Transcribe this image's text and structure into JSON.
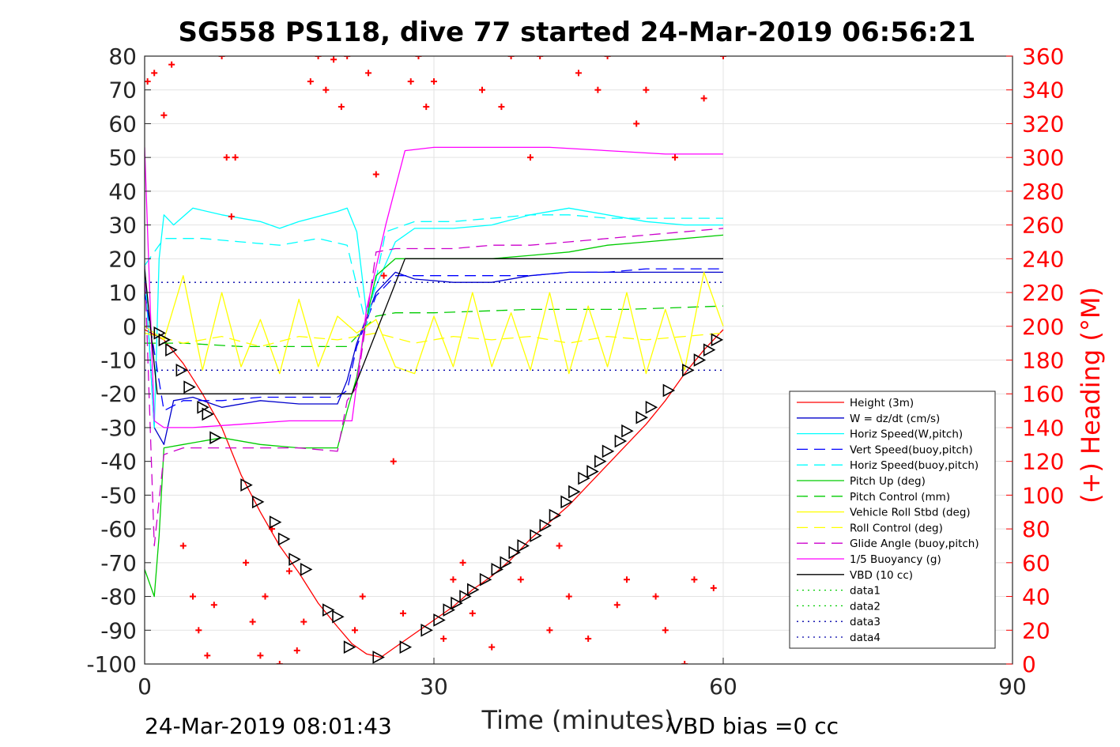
{
  "chart_data": {
    "type": "line",
    "title": "SG558 PS118, dive 77 started 24-Mar-2019 06:56:21",
    "xlabel": "Time (minutes)",
    "ylabel": "",
    "y2label": "(+) Heading (°M)",
    "xlim": [
      0,
      90
    ],
    "ylim": [
      -100,
      80
    ],
    "y2lim": [
      0,
      360
    ],
    "xticks": [
      "0",
      "30",
      "60",
      "90"
    ],
    "yticks": [
      "80",
      "70",
      "60",
      "50",
      "40",
      "30",
      "20",
      "10",
      "0",
      "-10",
      "-20",
      "-30",
      "-40",
      "-50",
      "-60",
      "-70",
      "-80",
      "-90",
      "-100"
    ],
    "y2ticks": [
      "360",
      "340",
      "320",
      "300",
      "280",
      "260",
      "240",
      "220",
      "200",
      "180",
      "160",
      "140",
      "120",
      "100",
      "80",
      "60",
      "40",
      "20",
      "0"
    ],
    "grid": true,
    "legend_position": "lower-right",
    "footer_left": "24-Mar-2019 08:01:43",
    "footer_right": "VBD bias =0 cc",
    "series": [
      {
        "name": "Height (3m)",
        "color": "#ff0000",
        "style": "solid",
        "x": [
          0,
          2,
          4,
          6,
          8,
          10,
          12,
          14,
          16,
          18,
          20,
          21.5,
          23,
          24.5,
          26,
          28,
          30,
          32,
          34,
          36,
          38,
          40,
          42,
          44,
          46,
          48,
          50,
          52,
          54,
          56,
          58,
          60
        ],
        "y": [
          -1,
          -4,
          -11,
          -20,
          -30,
          -44,
          -55,
          -65,
          -73,
          -82,
          -89,
          -94,
          -97,
          -98,
          -95,
          -91,
          -87,
          -83,
          -78,
          -74,
          -69,
          -63,
          -58,
          -53,
          -47,
          -41,
          -35,
          -29,
          -22,
          -14,
          -7,
          -1
        ]
      },
      {
        "name": "W = dz/dt (cm/s)",
        "color": "#0000cc",
        "style": "solid",
        "x": [
          0,
          1,
          2,
          3,
          5,
          8,
          12,
          16,
          20,
          21,
          22,
          24,
          26,
          28,
          32,
          36,
          40,
          44,
          48,
          52,
          56,
          60
        ],
        "y": [
          18,
          -30,
          -35,
          -22,
          -21,
          -24,
          -22,
          -23,
          -23,
          -16,
          -5,
          10,
          16,
          14,
          13,
          13,
          15,
          16,
          16,
          16,
          16,
          16
        ]
      },
      {
        "name": "Horiz Speed(W,pitch)",
        "color": "#00ffff",
        "style": "solid",
        "x": [
          0,
          1,
          1.5,
          2,
          3,
          5,
          8,
          12,
          14,
          16,
          20,
          21,
          22,
          23,
          24,
          26,
          28,
          32,
          36,
          40,
          44,
          48,
          52,
          56,
          60
        ],
        "y": [
          18,
          -30,
          20,
          33,
          30,
          35,
          33,
          31,
          29,
          31,
          34,
          35,
          28,
          4,
          12,
          25,
          29,
          29,
          30,
          33,
          35,
          33,
          31,
          30,
          30
        ]
      },
      {
        "name": "Vert Speed(buoy,pitch)",
        "color": "#0000ff",
        "style": "dash",
        "x": [
          0,
          2,
          4,
          8,
          12,
          16,
          20,
          21,
          22,
          24,
          26,
          28,
          32,
          36,
          40,
          44,
          48,
          52,
          56,
          60
        ],
        "y": [
          10,
          -25,
          -22,
          -22,
          -21,
          -21,
          -21,
          -19,
          -6,
          9,
          15,
          15,
          15,
          15,
          15,
          16,
          16,
          17,
          17,
          17
        ]
      },
      {
        "name": "Horiz Speed(buoy,pitch)",
        "color": "#00ffff",
        "style": "dash",
        "x": [
          0,
          2,
          3,
          6,
          10,
          14,
          18,
          21,
          23,
          25,
          28,
          32,
          36,
          40,
          44,
          48,
          52,
          56,
          60
        ],
        "y": [
          18,
          26,
          26,
          26,
          25,
          24,
          26,
          24,
          0,
          28,
          31,
          31,
          32,
          33,
          33,
          32,
          32,
          32,
          32
        ]
      },
      {
        "name": "Pitch Up (deg)",
        "color": "#00cc00",
        "style": "solid",
        "x": [
          0,
          1,
          1.5,
          2,
          4,
          8,
          12,
          16,
          20,
          21,
          22,
          23,
          24,
          26,
          28,
          32,
          36,
          40,
          44,
          48,
          52,
          56,
          60
        ],
        "y": [
          -72,
          -80,
          -62,
          -36,
          -35,
          -33,
          -35,
          -36,
          -36,
          -25,
          -15,
          2,
          15,
          20,
          20,
          20,
          20,
          21,
          22,
          24,
          25,
          26,
          27
        ]
      },
      {
        "name": "Pitch Control (mm)",
        "color": "#00cc00",
        "style": "dash",
        "x": [
          0,
          2,
          4,
          10,
          16,
          21,
          22,
          24,
          26,
          30,
          40,
          50,
          60
        ],
        "y": [
          -5,
          -5,
          -5,
          -6,
          -6,
          -6,
          -3,
          3,
          4,
          4,
          5,
          5,
          6
        ]
      },
      {
        "name": "Vehicle Roll Stbd (deg)",
        "color": "#ffff00",
        "style": "solid",
        "x": [
          0,
          2,
          4,
          6,
          8,
          10,
          12,
          14,
          16,
          18,
          20,
          22,
          24,
          26,
          28,
          30,
          32,
          34,
          36,
          38,
          40,
          42,
          44,
          46,
          48,
          50,
          52,
          54,
          56,
          58,
          60
        ],
        "y": [
          0,
          -4,
          15,
          -13,
          10,
          -12,
          2,
          -14,
          8,
          -12,
          3,
          -2,
          2,
          -12,
          -14,
          3,
          -12,
          10,
          -12,
          4,
          -13,
          10,
          -14,
          6,
          -12,
          10,
          -14,
          5,
          -13,
          16,
          0
        ]
      },
      {
        "name": "Roll Control (deg)",
        "color": "#ffff00",
        "style": "dash",
        "x": [
          0,
          4,
          8,
          12,
          16,
          20,
          24,
          28,
          32,
          36,
          40,
          44,
          48,
          52,
          56,
          60
        ],
        "y": [
          -2,
          -5,
          -3,
          -6,
          -3,
          -4,
          -2,
          -5,
          -3,
          -4,
          -3,
          -5,
          -3,
          -4,
          -3,
          -2
        ]
      },
      {
        "name": "Glide Angle (buoy,pitch)",
        "color": "#cc00cc",
        "style": "dash",
        "x": [
          0,
          1,
          2,
          4,
          8,
          12,
          16,
          20,
          21,
          22,
          24,
          26,
          28,
          32,
          36,
          40,
          44,
          48,
          52,
          56,
          60
        ],
        "y": [
          18,
          -65,
          -38,
          -36,
          -36,
          -36,
          -36,
          -37,
          -22,
          -18,
          22,
          23,
          23,
          23,
          24,
          24,
          25,
          26,
          27,
          28,
          29
        ]
      },
      {
        "name": "1/5 Buoyancy (g)",
        "color": "#ff00ff",
        "style": "solid",
        "x": [
          0,
          1,
          2,
          5,
          10,
          15,
          20,
          21.5,
          23,
          25,
          27,
          30,
          36,
          42,
          48,
          54,
          60
        ],
        "y": [
          53,
          -28,
          -30,
          -30,
          -29,
          -28,
          -28,
          -28,
          5,
          30,
          52,
          53,
          53,
          53,
          52,
          51,
          51
        ]
      },
      {
        "name": "VBD (10 cc)",
        "color": "#000000",
        "style": "solid",
        "x": [
          0,
          1.3,
          21.5,
          27,
          60
        ],
        "y": [
          17,
          -20,
          -20,
          20,
          20
        ]
      },
      {
        "name": "data1",
        "color": "#00cc00",
        "style": "dot",
        "x": [],
        "y": []
      },
      {
        "name": "data2",
        "color": "#00cc00",
        "style": "dot",
        "x": [],
        "y": []
      },
      {
        "name": "data3",
        "color": "#0000aa",
        "style": "dot",
        "x": [
          0,
          60
        ],
        "y": [
          13,
          13
        ]
      },
      {
        "name": "data4",
        "color": "#0000aa",
        "style": "dot",
        "x": [
          0,
          60
        ],
        "y": [
          -13,
          -13
        ]
      }
    ],
    "heading_series": {
      "name": "Heading (+)",
      "color": "#ff0000",
      "axis": "right",
      "x": [
        0.3,
        1,
        2,
        2.8,
        4,
        5,
        5.6,
        6.5,
        7.2,
        8,
        8.5,
        9,
        9.4,
        10.5,
        11.2,
        12,
        12.5,
        13.2,
        14,
        15,
        15.8,
        16.5,
        17.2,
        18,
        18.8,
        19.6,
        20.4,
        21,
        21.8,
        22.6,
        23.2,
        24,
        24.8,
        25.8,
        26.8,
        27.6,
        28.4,
        29.2,
        30,
        31,
        32,
        33,
        34,
        35,
        36,
        37,
        38,
        39,
        40,
        41,
        42,
        43,
        44,
        45,
        46,
        47,
        48,
        49,
        50,
        51,
        52,
        53,
        54,
        55,
        56,
        57,
        58,
        59,
        60
      ],
      "y": [
        345,
        350,
        325,
        355,
        70,
        40,
        20,
        5,
        35,
        360,
        300,
        265,
        300,
        60,
        25,
        5,
        40,
        80,
        0,
        55,
        8,
        25,
        345,
        360,
        340,
        358,
        330,
        360,
        20,
        40,
        350,
        290,
        230,
        120,
        30,
        345,
        360,
        330,
        345,
        15,
        50,
        60,
        30,
        340,
        10,
        330,
        360,
        50,
        300,
        360,
        20,
        70,
        40,
        350,
        15,
        340,
        360,
        35,
        50,
        320,
        340,
        40,
        20,
        300,
        0,
        50,
        335,
        45,
        360
      ]
    },
    "marker_series": {
      "name": "markers",
      "color": "#000000",
      "marker": "triangle",
      "x": [
        1.5,
        2,
        2.7,
        3.8,
        4.6,
        6,
        6.5,
        7.3,
        10.5,
        11.7,
        13.5,
        14.4,
        15.5,
        16.7,
        19,
        20,
        21.2,
        24.2,
        27,
        29.2,
        30.5,
        31.5,
        32.3,
        33.2,
        34,
        35.3,
        36.5,
        37.4,
        38.3,
        39.2,
        40.5,
        41.5,
        42.5,
        43.7,
        44.5,
        45.5,
        46.4,
        47.2,
        48,
        49.3,
        50,
        51.5,
        52.5,
        54.3,
        56.3,
        57.5,
        58.5,
        59.3
      ],
      "y": [
        -2,
        -4,
        -7,
        -13,
        -18,
        -24,
        -26,
        -33,
        -47,
        -52,
        -58,
        -63,
        -69,
        -72,
        -84,
        -86,
        -95,
        -98,
        -95,
        -90,
        -87,
        -84,
        -82,
        -80,
        -78,
        -75,
        -72,
        -70,
        -67,
        -65,
        -62,
        -59,
        -56,
        -52,
        -49,
        -45,
        -43,
        -40,
        -37,
        -34,
        -31,
        -27,
        -24,
        -19,
        -13,
        -10,
        -7,
        -4
      ]
    }
  }
}
